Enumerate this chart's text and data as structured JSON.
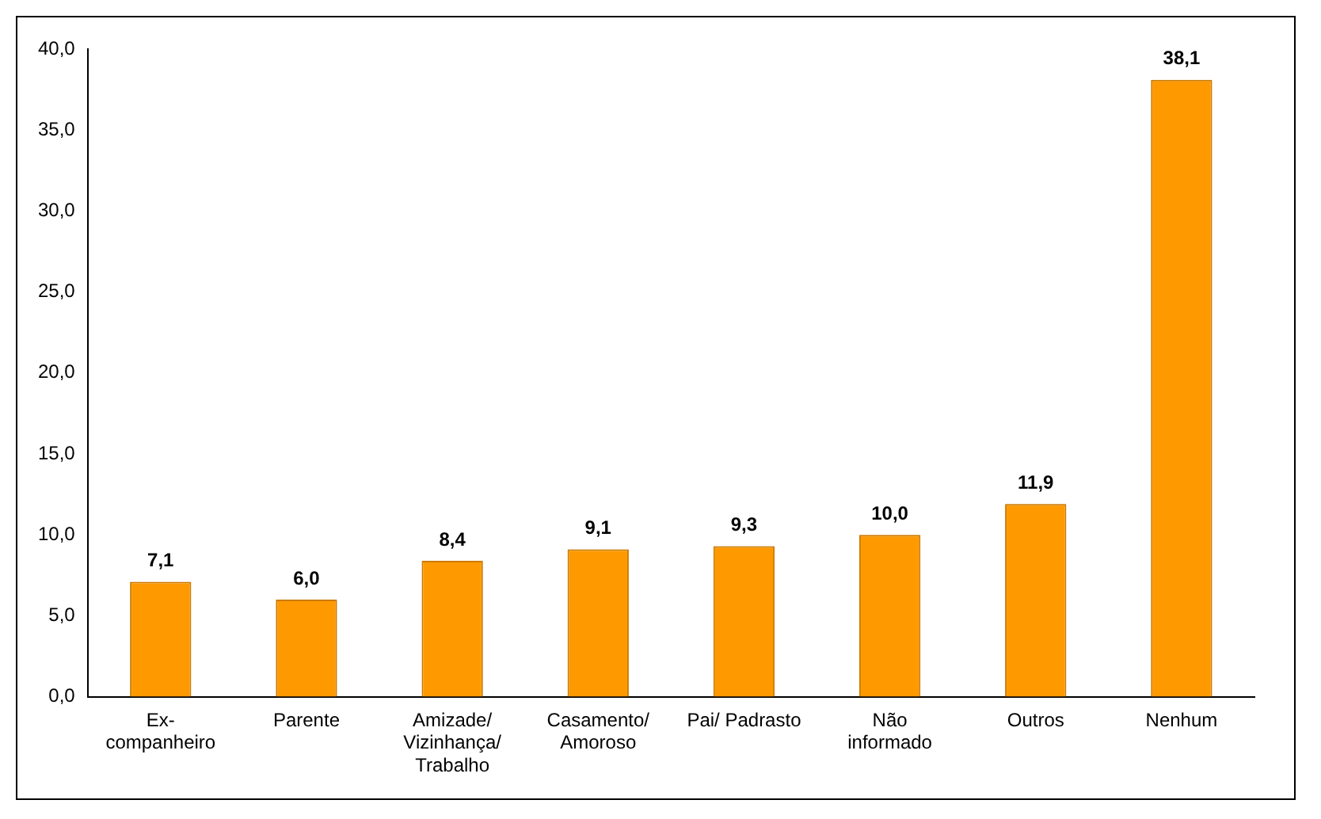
{
  "chart_data": {
    "type": "bar",
    "categories": [
      "Ex-companheiro",
      "Parente",
      "Amizade/ Vizinhança/ Trabalho",
      "Casamento/ Amoroso",
      "Pai/ Padrasto",
      "Não informado",
      "Outros",
      "Nenhum"
    ],
    "values": [
      7.1,
      6.0,
      8.4,
      9.1,
      9.3,
      10.0,
      11.9,
      38.1
    ],
    "value_labels": [
      "7,1",
      "6,0",
      "8,4",
      "9,1",
      "9,3",
      "10,0",
      "11,9",
      "38,1"
    ],
    "color": "#ff9900",
    "ylim": [
      0,
      40
    ],
    "yticks": [
      {
        "value": 0,
        "label": "0,0"
      },
      {
        "value": 5,
        "label": "5,0"
      },
      {
        "value": 10,
        "label": "10,0"
      },
      {
        "value": 15,
        "label": "15,0"
      },
      {
        "value": 20,
        "label": "20,0"
      },
      {
        "value": 25,
        "label": "25,0"
      },
      {
        "value": 30,
        "label": "30,0"
      },
      {
        "value": 35,
        "label": "35,0"
      },
      {
        "value": 40,
        "label": "40,0"
      }
    ],
    "grid": false,
    "legend": false
  }
}
